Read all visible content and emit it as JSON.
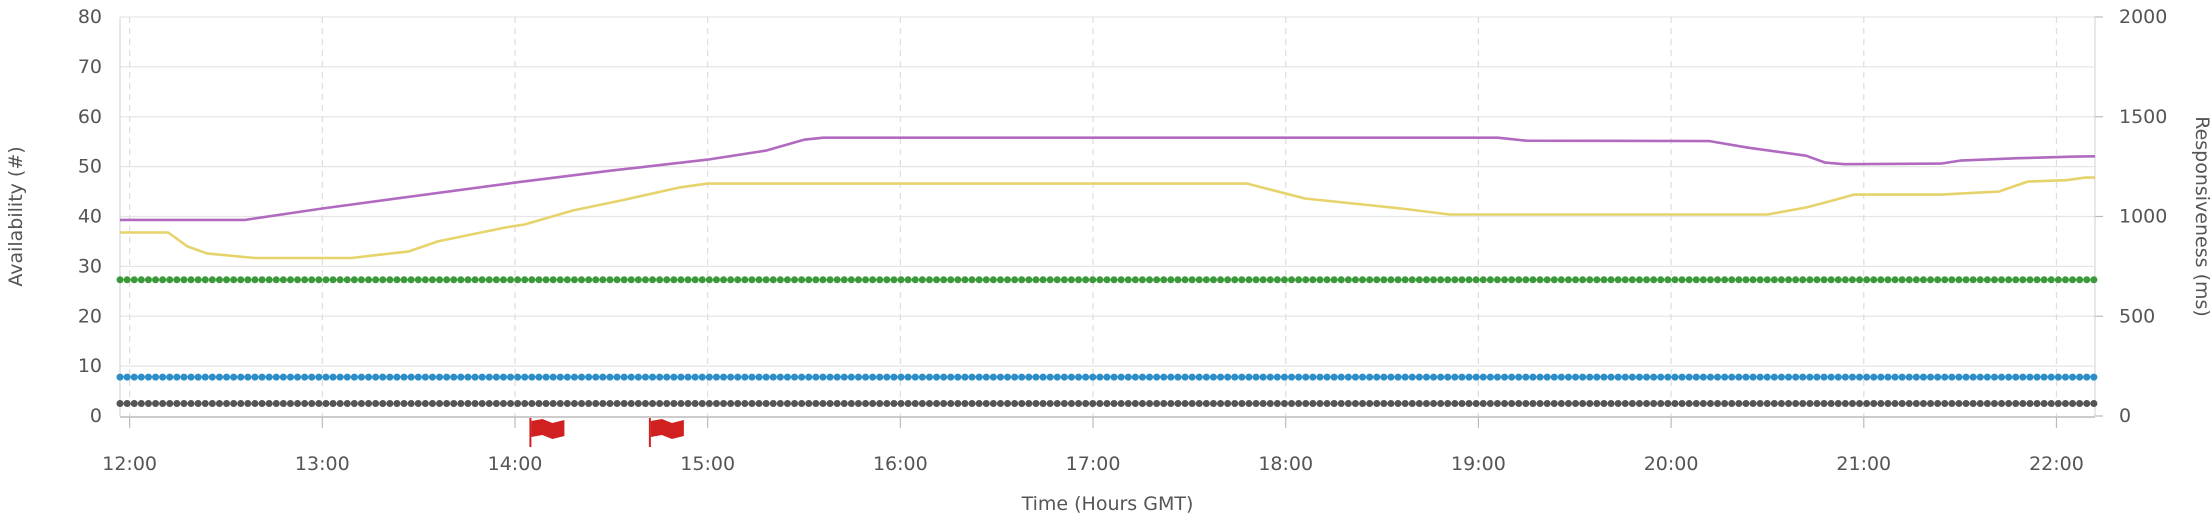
{
  "chart_data": {
    "type": "line",
    "xlabel": "Time (Hours GMT)",
    "ylabel_left": "Availability (#)",
    "ylabel_right": "Responsiveness (ms)",
    "xlim": [
      11.95,
      22.2
    ],
    "ylim_left": [
      0,
      80
    ],
    "ylim_right": [
      0,
      2000
    ],
    "x_ticks": [
      {
        "value": 12,
        "label": "12:00"
      },
      {
        "value": 13,
        "label": "13:00"
      },
      {
        "value": 14,
        "label": "14:00"
      },
      {
        "value": 15,
        "label": "15:00"
      },
      {
        "value": 16,
        "label": "16:00"
      },
      {
        "value": 17,
        "label": "17:00"
      },
      {
        "value": 18,
        "label": "18:00"
      },
      {
        "value": 19,
        "label": "19:00"
      },
      {
        "value": 20,
        "label": "20:00"
      },
      {
        "value": 21,
        "label": "21:00"
      },
      {
        "value": 22,
        "label": "22:00"
      }
    ],
    "y_ticks_left": [
      0,
      10,
      20,
      30,
      40,
      50,
      60,
      70,
      80
    ],
    "y_ticks_right": [
      0,
      500,
      1000,
      1500,
      2000
    ],
    "grid": true,
    "series": [
      {
        "axis": "right",
        "color": "#b06ac0",
        "style": "solid",
        "points": [
          [
            11.95,
            983
          ],
          [
            12.6,
            983
          ],
          [
            13.0,
            1040
          ],
          [
            14.0,
            1170
          ],
          [
            14.5,
            1230
          ],
          [
            15.0,
            1285
          ],
          [
            15.3,
            1330
          ],
          [
            15.5,
            1385
          ],
          [
            15.6,
            1395
          ],
          [
            19.1,
            1395
          ],
          [
            19.25,
            1380
          ],
          [
            20.2,
            1378
          ],
          [
            20.4,
            1345
          ],
          [
            20.7,
            1305
          ],
          [
            20.8,
            1270
          ],
          [
            20.9,
            1262
          ],
          [
            21.4,
            1265
          ],
          [
            21.5,
            1280
          ],
          [
            21.8,
            1292
          ],
          [
            22.1,
            1300
          ],
          [
            22.2,
            1302
          ]
        ]
      },
      {
        "axis": "right",
        "color": "#e6d36b",
        "style": "solid",
        "points": [
          [
            11.95,
            920
          ],
          [
            12.2,
            920
          ],
          [
            12.3,
            850
          ],
          [
            12.4,
            815
          ],
          [
            12.65,
            792
          ],
          [
            13.15,
            792
          ],
          [
            13.45,
            825
          ],
          [
            13.6,
            875
          ],
          [
            13.95,
            945
          ],
          [
            14.05,
            960
          ],
          [
            14.3,
            1030
          ],
          [
            14.55,
            1080
          ],
          [
            14.85,
            1145
          ],
          [
            15.0,
            1165
          ],
          [
            17.8,
            1165
          ],
          [
            17.9,
            1140
          ],
          [
            18.1,
            1090
          ],
          [
            18.4,
            1060
          ],
          [
            18.6,
            1040
          ],
          [
            18.85,
            1010
          ],
          [
            20.5,
            1010
          ],
          [
            20.7,
            1045
          ],
          [
            20.8,
            1070
          ],
          [
            20.95,
            1110
          ],
          [
            21.4,
            1110
          ],
          [
            21.7,
            1125
          ],
          [
            21.85,
            1175
          ],
          [
            22.05,
            1182
          ],
          [
            22.15,
            1195
          ],
          [
            22.2,
            1195
          ]
        ]
      },
      {
        "axis": "left",
        "color": "#3a9a3a",
        "style": "dotted",
        "points": [
          [
            11.95,
            27.3
          ],
          [
            22.2,
            27.3
          ]
        ]
      },
      {
        "axis": "left",
        "color": "#2b8ec8",
        "style": "dotted",
        "points": [
          [
            11.95,
            7.8
          ],
          [
            22.2,
            7.8
          ]
        ]
      },
      {
        "axis": "left",
        "color": "#555555",
        "style": "dotted",
        "points": [
          [
            11.95,
            2.5
          ],
          [
            22.2,
            2.5
          ]
        ]
      }
    ],
    "annotations": [
      {
        "kind": "flag",
        "x": 14.08,
        "color": "#d0201f"
      },
      {
        "kind": "flag",
        "x": 14.7,
        "color": "#d0201f"
      }
    ]
  }
}
